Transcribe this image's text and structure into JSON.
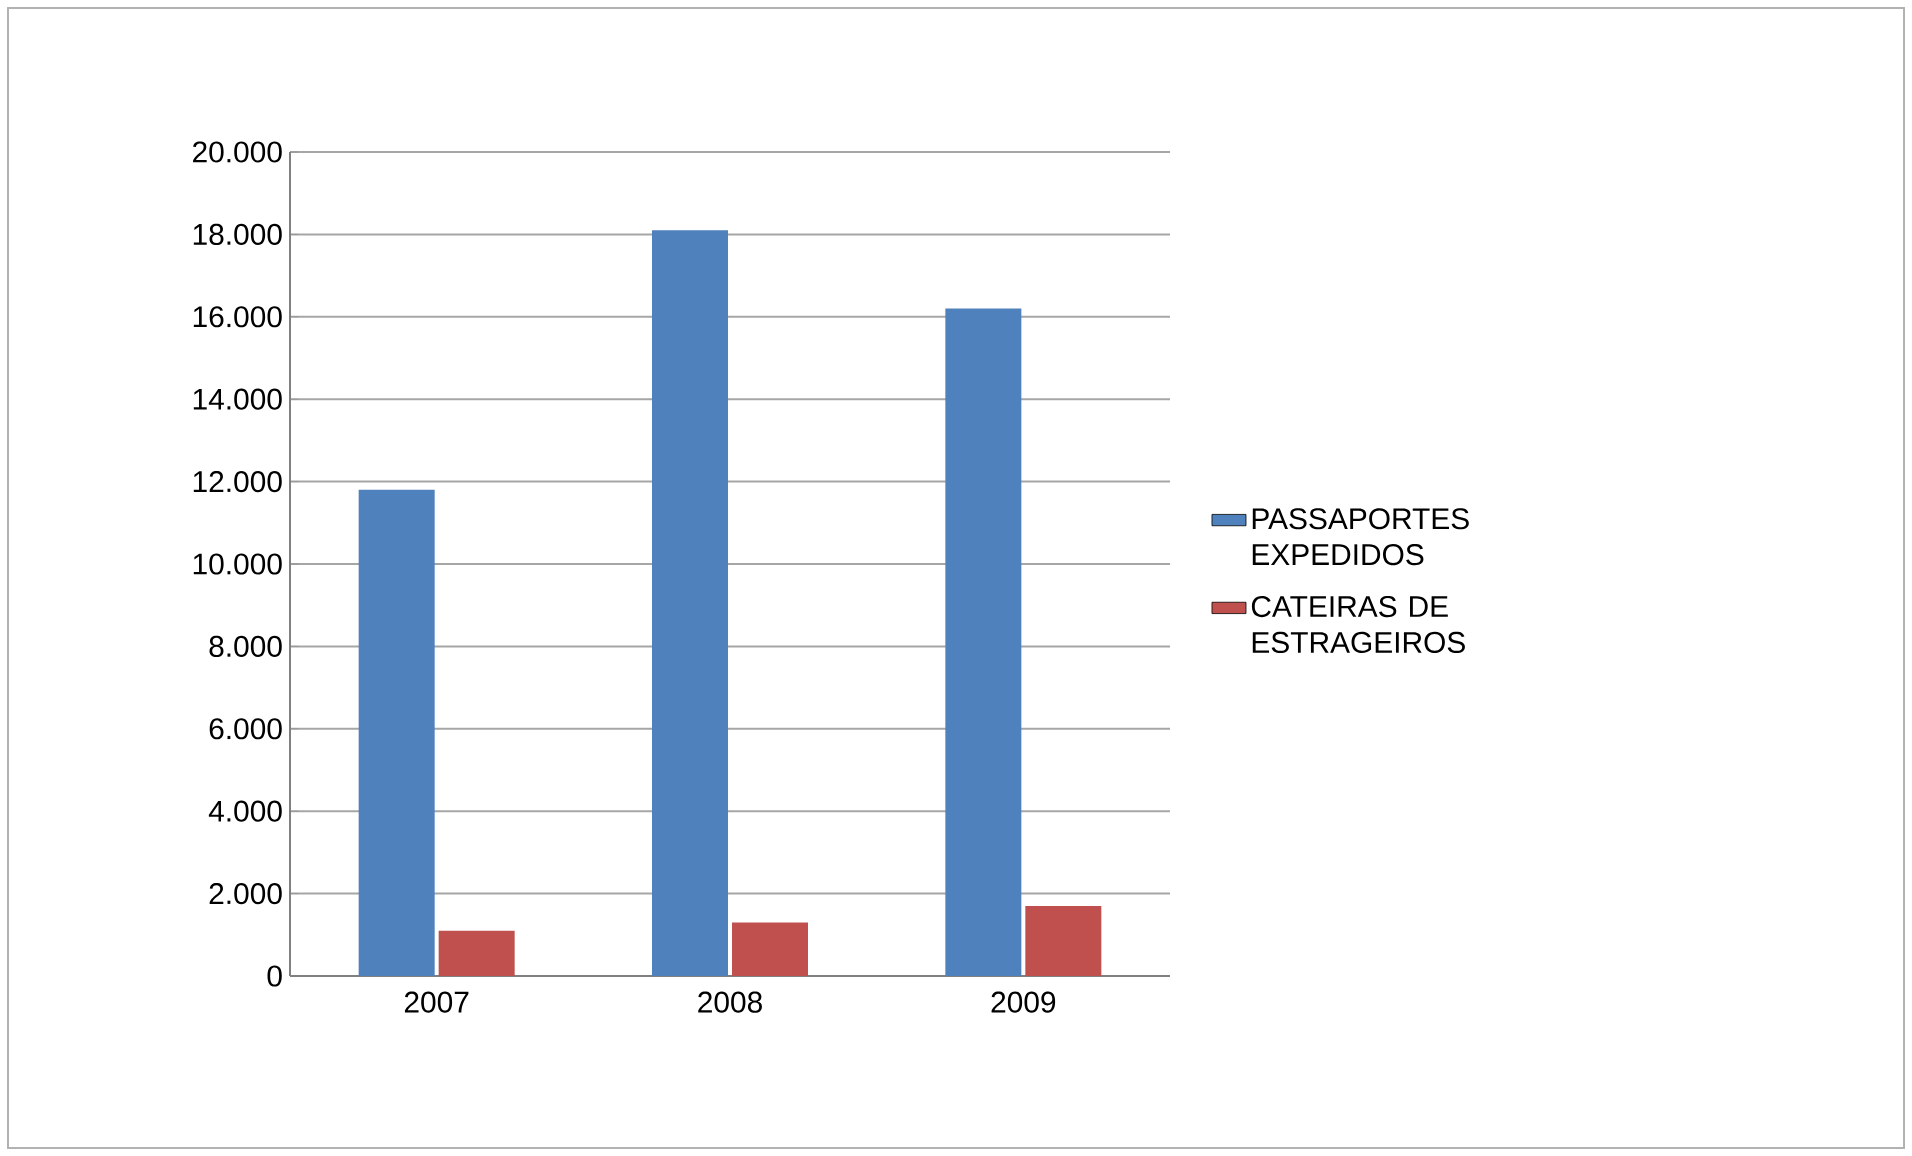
{
  "chart_data": {
    "type": "bar",
    "categories": [
      "2007",
      "2008",
      "2009"
    ],
    "series": [
      {
        "name": "PASSAPORTES EXPEDIDOS",
        "color": "#4f81bd",
        "values": [
          11800,
          18100,
          16200
        ]
      },
      {
        "name": "CATEIRAS DE ESTRAGEIROS",
        "color": "#c0504d",
        "values": [
          1100,
          1300,
          1700
        ]
      }
    ],
    "ylim": [
      0,
      20000
    ],
    "yticks": [
      {
        "value": 0,
        "label": "0"
      },
      {
        "value": 2000,
        "label": "2.000"
      },
      {
        "value": 4000,
        "label": "4.000"
      },
      {
        "value": 6000,
        "label": "6.000"
      },
      {
        "value": 8000,
        "label": "8.000"
      },
      {
        "value": 10000,
        "label": "10.000"
      },
      {
        "value": 12000,
        "label": "12.000"
      },
      {
        "value": 14000,
        "label": "14.000"
      },
      {
        "value": 16000,
        "label": "16.000"
      },
      {
        "value": 18000,
        "label": "18.000"
      },
      {
        "value": 20000,
        "label": "20.000"
      }
    ],
    "grid": "y",
    "legend": "right"
  }
}
